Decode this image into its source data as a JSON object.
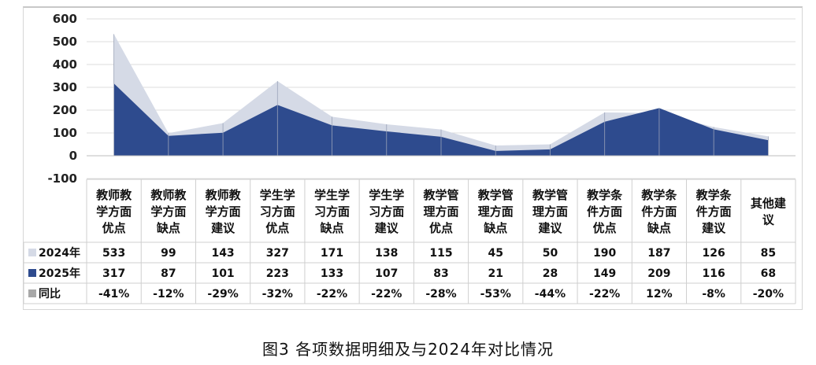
{
  "caption": "图3 各项数据明细及与2024年对比情况",
  "chart_data": {
    "type": "area",
    "categories": [
      [
        "教师教",
        "学方面",
        "优点"
      ],
      [
        "教师教",
        "学方面",
        "缺点"
      ],
      [
        "教师教",
        "学方面",
        "建议"
      ],
      [
        "学生学",
        "习方面",
        "优点"
      ],
      [
        "学生学",
        "习方面",
        "缺点"
      ],
      [
        "学生学",
        "习方面",
        "建议"
      ],
      [
        "教学管",
        "理方面",
        "优点"
      ],
      [
        "教学管",
        "理方面",
        "缺点"
      ],
      [
        "教学管",
        "理方面",
        "建议"
      ],
      [
        "教学条",
        "件方面",
        "优点"
      ],
      [
        "教学条",
        "件方面",
        "缺点"
      ],
      [
        "教学条",
        "件方面",
        "建议"
      ],
      [
        "其他建",
        "议"
      ]
    ],
    "ylim": [
      -100,
      600
    ],
    "yticks": [
      600,
      500,
      400,
      300,
      200,
      100,
      0,
      -100
    ],
    "grid": true,
    "series": [
      {
        "name": "2024年",
        "color": "#d5dae6",
        "values": [
          533,
          99,
          143,
          327,
          171,
          138,
          115,
          45,
          50,
          190,
          187,
          126,
          85
        ]
      },
      {
        "name": "2025年",
        "color": "#2e4b8e",
        "values": [
          317,
          87,
          101,
          223,
          133,
          107,
          83,
          21,
          28,
          149,
          209,
          116,
          68
        ]
      }
    ],
    "table_rows": [
      {
        "name": "2024年",
        "marker_color": "#d5dae6",
        "values": [
          "533",
          "99",
          "143",
          "327",
          "171",
          "138",
          "115",
          "45",
          "50",
          "190",
          "187",
          "126",
          "85"
        ]
      },
      {
        "name": "2025年",
        "marker_color": "#2e4b8e",
        "values": [
          "317",
          "87",
          "101",
          "223",
          "133",
          "107",
          "83",
          "21",
          "28",
          "149",
          "209",
          "116",
          "68"
        ]
      },
      {
        "name": "同比",
        "marker_color": "#a8a8a8",
        "values": [
          "-41%",
          "-12%",
          "-29%",
          "-32%",
          "-22%",
          "-22%",
          "-28%",
          "-53%",
          "-44%",
          "-22%",
          "12%",
          "-8%",
          "-20%"
        ]
      }
    ]
  }
}
